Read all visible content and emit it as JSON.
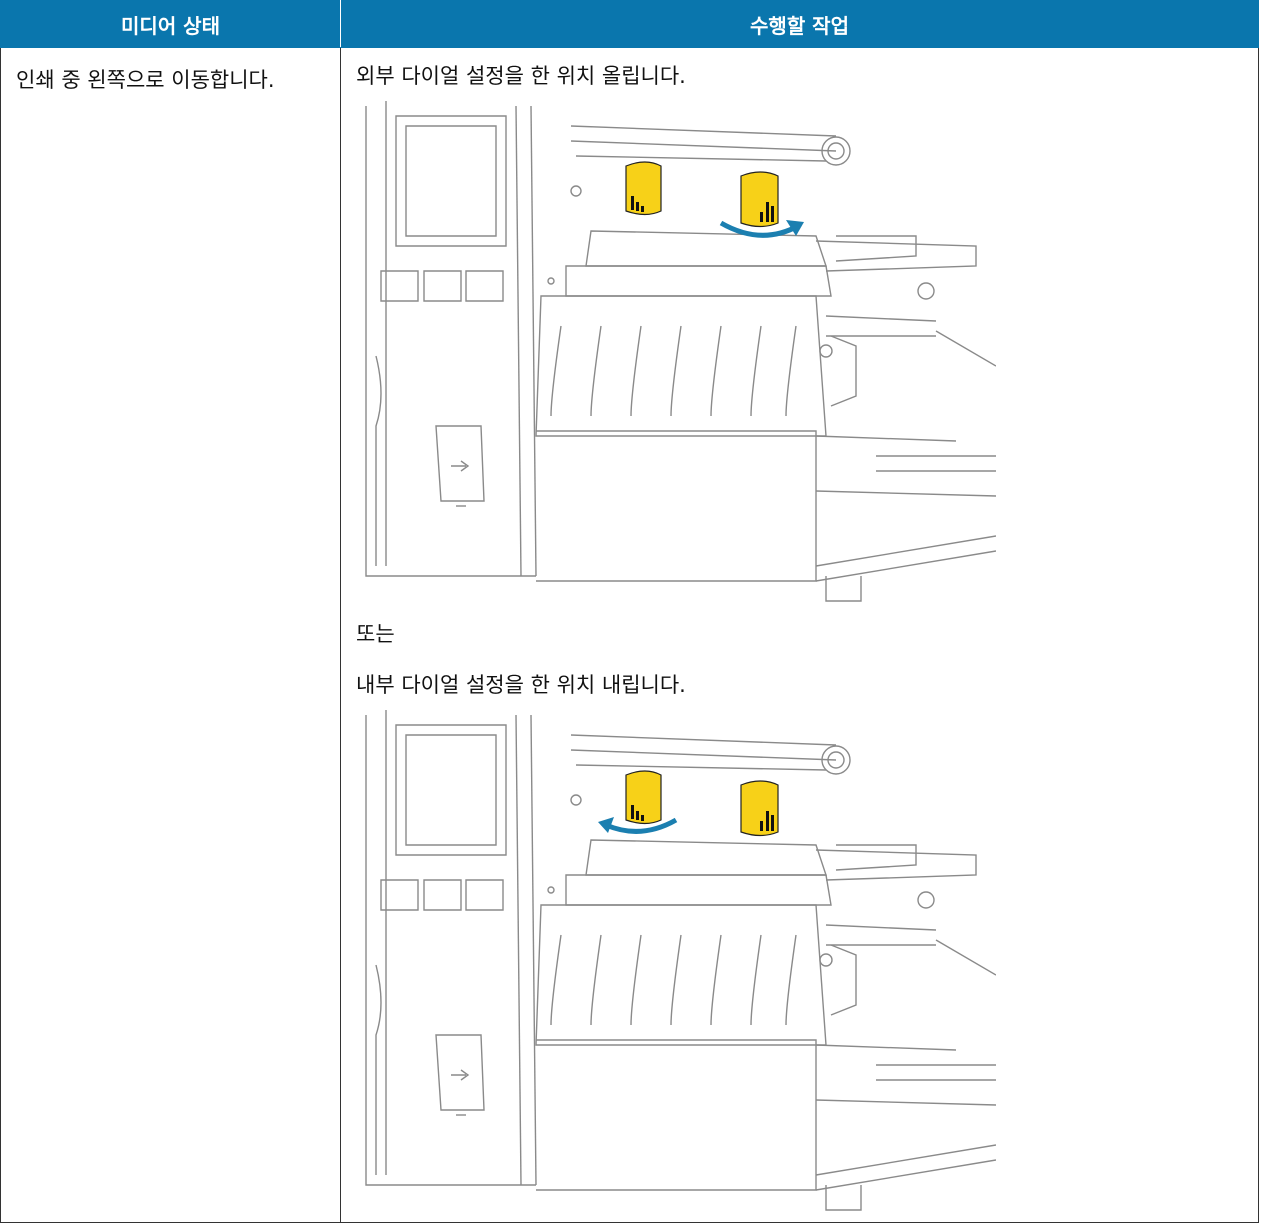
{
  "table": {
    "headers": [
      "미디어 상태",
      "수행할 작업"
    ],
    "rows": [
      [
        "인쇄 중 왼쪽으로 이동합니다.",
        [
          "외부 다이얼 설정을 한 위치 올립니다.",
          "또는",
          "내부 다이얼 설정을 한 위치 내립니다."
        ]
      ]
    ]
  }
}
